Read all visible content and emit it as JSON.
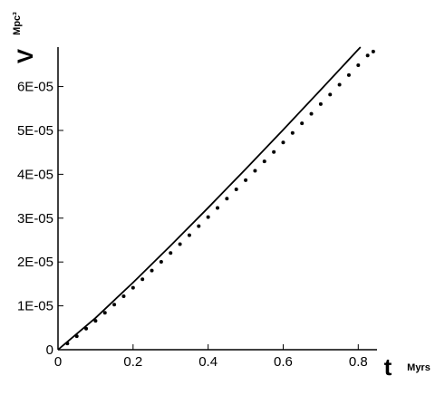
{
  "chart_data": {
    "type": "line",
    "x_label": "t",
    "x_unit": "Myrs",
    "y_label": "V",
    "y_unit": "Mpc³",
    "xlim": [
      0,
      0.85
    ],
    "ylim": [
      0,
      6.9e-05
    ],
    "xticks": [
      0,
      0.2,
      0.4,
      0.6,
      0.8
    ],
    "yticks": [
      0,
      {
        "value": 1e-05,
        "label": "1E-05"
      },
      {
        "value": 2e-05,
        "label": "2E-05"
      },
      {
        "value": 3e-05,
        "label": "3E-05"
      },
      {
        "value": 4e-05,
        "label": "4E-05"
      },
      {
        "value": 5e-05,
        "label": "5E-05"
      },
      {
        "value": 6e-05,
        "label": "6E-05"
      }
    ],
    "series": [
      {
        "style": "line",
        "color": "#000000",
        "x": [
          0,
          0.1,
          0.2,
          0.3,
          0.4,
          0.5,
          0.6,
          0.7,
          0.8,
          0.806
        ],
        "values": [
          0,
          7.25e-06,
          1.532e-05,
          2.373e-05,
          3.237e-05,
          4.12e-05,
          5.015e-05,
          5.927e-05,
          6.845e-05,
          6.9e-05
        ]
      },
      {
        "style": "markers",
        "color": "#000000",
        "x": [
          0.025,
          0.05,
          0.075,
          0.1,
          0.125,
          0.15,
          0.175,
          0.2,
          0.225,
          0.25,
          0.275,
          0.3,
          0.325,
          0.35,
          0.375,
          0.4,
          0.425,
          0.45,
          0.475,
          0.5,
          0.525,
          0.55,
          0.575,
          0.6,
          0.625,
          0.65,
          0.675,
          0.7,
          0.725,
          0.75,
          0.775,
          0.8,
          0.825,
          0.84
        ],
        "values": [
          1.43e-06,
          3.08e-06,
          4.8e-06,
          6.58e-06,
          8.42e-06,
          1.029e-05,
          1.219e-05,
          1.412e-05,
          1.607e-05,
          1.804e-05,
          2.004e-05,
          2.205e-05,
          2.408e-05,
          2.612e-05,
          2.818e-05,
          3.025e-05,
          3.234e-05,
          3.444e-05,
          3.656e-05,
          3.867e-05,
          4.08e-05,
          4.294e-05,
          4.51e-05,
          4.725e-05,
          4.943e-05,
          5.161e-05,
          5.38e-05,
          5.6e-05,
          5.819e-05,
          6.043e-05,
          6.263e-05,
          6.488e-05,
          6.708e-05,
          6.8e-05
        ]
      }
    ]
  }
}
